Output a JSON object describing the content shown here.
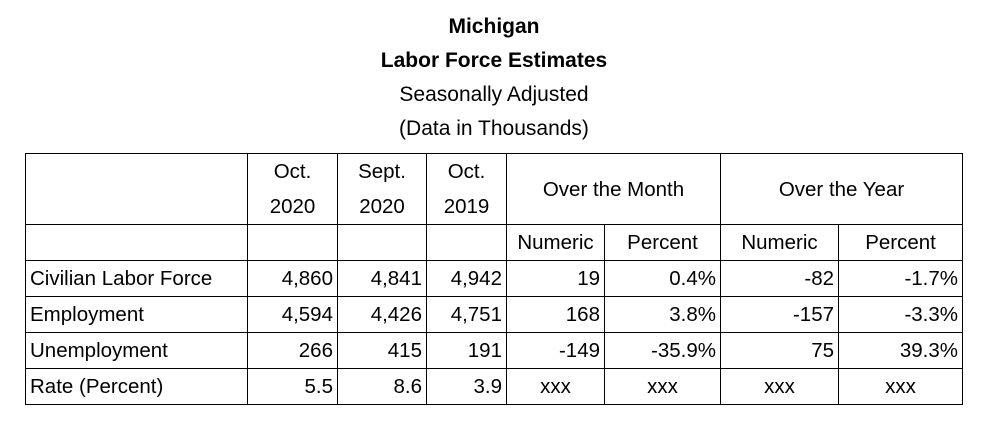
{
  "title": {
    "state": "Michigan",
    "heading": "Labor Force Estimates",
    "adjust": "Seasonally Adjusted",
    "units": "(Data in Thousands)"
  },
  "header": {
    "col1": [
      "Oct.",
      "2020"
    ],
    "col2": [
      "Sept.",
      "2020"
    ],
    "col3": [
      "Oct.",
      "2019"
    ],
    "month": "Over the Month",
    "year": "Over the Year",
    "sub": [
      "Numeric",
      "Percent",
      "Numeric",
      "Percent"
    ]
  },
  "rows": [
    {
      "label": "Civilian Labor Force",
      "values": [
        "4,860",
        "4,841",
        "4,942",
        "19",
        "0.4%",
        "-82",
        "-1.7%"
      ]
    },
    {
      "label": "Employment",
      "values": [
        "4,594",
        "4,426",
        "4,751",
        "168",
        "3.8%",
        "-157",
        "-3.3%"
      ]
    },
    {
      "label": "Unemployment",
      "values": [
        "266",
        "415",
        "191",
        "-149",
        "-35.9%",
        "75",
        "39.3%"
      ]
    },
    {
      "label": "Rate (Percent)",
      "values": [
        "5.5",
        "8.6",
        "3.9",
        "xxx",
        "xxx",
        "xxx",
        "xxx"
      ]
    }
  ]
}
